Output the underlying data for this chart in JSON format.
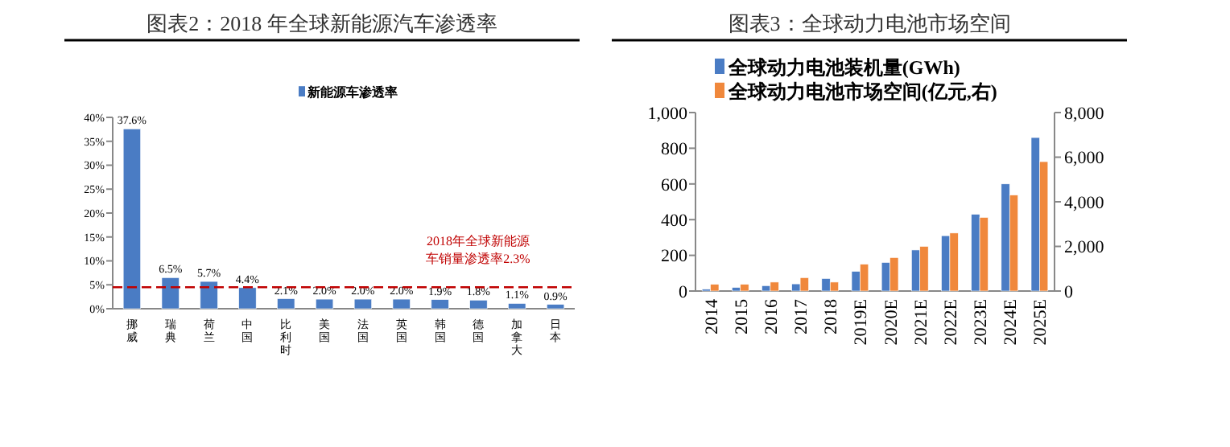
{
  "chart_data": [
    {
      "type": "bar",
      "title": "图表2：2018 年全球新能源汽车渗透率",
      "categories": [
        "挪威",
        "瑞典",
        "荷兰",
        "中国",
        "比利时",
        "美国",
        "法国",
        "英国",
        "韩国",
        "德国",
        "加拿大",
        "日本"
      ],
      "series": [
        {
          "name": "新能源车渗透率",
          "color": "#4a7cc4",
          "values": [
            37.6,
            6.5,
            5.7,
            4.4,
            2.1,
            2.0,
            2.0,
            2.0,
            1.9,
            1.8,
            1.1,
            0.9
          ],
          "value_labels": [
            "37.6%",
            "6.5%",
            "5.7%",
            "4.4%",
            "2.1%",
            "2.0%",
            "2.0%",
            "2.0%",
            "1.9%",
            "1.8%",
            "1.1%",
            "0.9%"
          ]
        }
      ],
      "ylim": [
        0,
        40
      ],
      "yticks": [
        {
          "value": 0,
          "label": "0%"
        },
        {
          "value": 5,
          "label": "5%"
        },
        {
          "value": 10,
          "label": "10%"
        },
        {
          "value": 15,
          "label": "15%"
        },
        {
          "value": 20,
          "label": "20%"
        },
        {
          "value": 25,
          "label": "25%"
        },
        {
          "value": 30,
          "label": "30%"
        },
        {
          "value": 35,
          "label": "35%"
        },
        {
          "value": 40,
          "label": "40%"
        }
      ],
      "ref_lines": [
        {
          "axis": "y",
          "value": 4.5,
          "label": "2018年全球新能源车销量渗透率2.3%",
          "color": "#c00000",
          "line_style": "dashed"
        }
      ],
      "legend": "top"
    },
    {
      "type": "bar",
      "title": "图表3：全球动力电池市场空间",
      "categories": [
        "2014",
        "2015",
        "2016",
        "2017",
        "2018",
        "2019E",
        "2020E",
        "2021E",
        "2022E",
        "2023E",
        "2024E",
        "2025E"
      ],
      "series": [
        {
          "name": "全球动力电池装机量(GWh)",
          "color": "#4a7cc4",
          "values": [
            10,
            20,
            30,
            40,
            70,
            110,
            160,
            230,
            310,
            430,
            600,
            860
          ]
        },
        {
          "name": "全球动力电池市场空间(亿元,右)",
          "color": "#f0883c",
          "axis": "y2",
          "values": [
            300,
            300,
            400,
            600,
            400,
            1200,
            1500,
            2000,
            2600,
            3300,
            4300,
            5800
          ]
        }
      ],
      "ylim": [
        0,
        1000
      ],
      "yticks": [
        0,
        200,
        400,
        600,
        800,
        {
          "value": 1000,
          "label": "1,000"
        }
      ],
      "y2lim": [
        0,
        8000
      ],
      "y2ticks": [
        0,
        {
          "value": 2000,
          "label": "2,000"
        },
        {
          "value": 4000,
          "label": "4,000"
        },
        {
          "value": 6000,
          "label": "6,000"
        },
        {
          "value": 8000,
          "label": "8,000"
        }
      ],
      "legend": "top left"
    }
  ]
}
